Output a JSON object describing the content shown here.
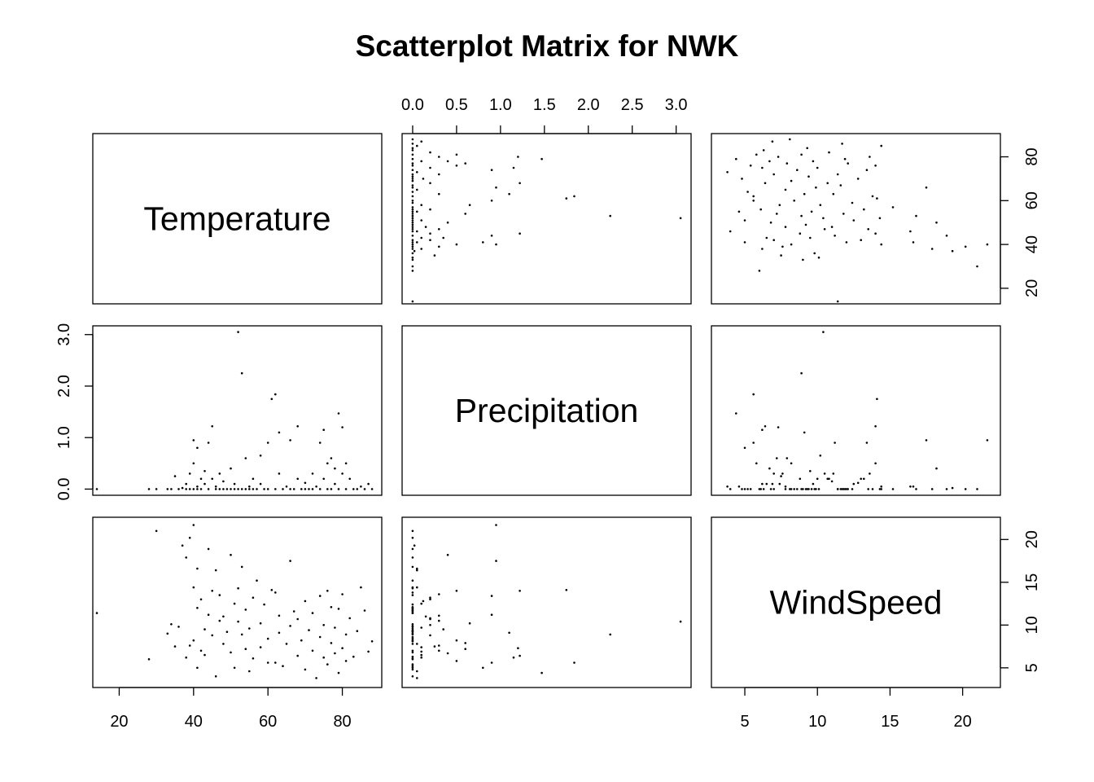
{
  "chart_data": {
    "type": "scatter",
    "title": "Scatterplot Matrix for NWK",
    "variables": [
      "Temperature",
      "Precipitation",
      "WindSpeed"
    ],
    "axes": {
      "Temperature": {
        "range": [
          12.9,
          90.6
        ],
        "ticks": [
          20,
          40,
          60,
          80
        ],
        "tick_labels": [
          "20",
          "40",
          "60",
          "80"
        ]
      },
      "Precipitation": {
        "range": [
          -0.12,
          3.17
        ],
        "ticks": [
          0,
          0.5,
          1,
          1.5,
          2,
          2.5,
          3
        ],
        "tick_labels": [
          "0.0",
          "0.5",
          "1.0",
          "1.5",
          "2.0",
          "2.5",
          "3.0"
        ],
        "vertical_ticks": [
          0,
          1,
          2,
          3
        ],
        "vertical_tick_labels": [
          "0.0",
          "1.0",
          "2.0",
          "3.0"
        ]
      },
      "WindSpeed": {
        "range": [
          2.7,
          22.6
        ],
        "ticks": [
          5,
          10,
          15,
          20
        ],
        "tick_labels": [
          "5",
          "10",
          "15",
          "20"
        ]
      }
    },
    "grid": false,
    "legend": "none",
    "point_color": "#000000",
    "observations": [
      {
        "t": 14,
        "p": 0,
        "w": 11.4
      },
      {
        "t": 28,
        "p": 0,
        "w": 6
      },
      {
        "t": 30,
        "p": 0,
        "w": 21
      },
      {
        "t": 33,
        "p": 0,
        "w": 9
      },
      {
        "t": 34,
        "p": 0,
        "w": 10.1
      },
      {
        "t": 35,
        "p": 0.25,
        "w": 7.5
      },
      {
        "t": 36,
        "p": 0,
        "w": 9.8
      },
      {
        "t": 37,
        "p": 0.02,
        "w": 19.3
      },
      {
        "t": 38,
        "p": 0,
        "w": 17.9
      },
      {
        "t": 38,
        "p": 0.1,
        "w": 6.2
      },
      {
        "t": 39,
        "p": 0,
        "w": 20.2
      },
      {
        "t": 39,
        "p": 0.3,
        "w": 7.6
      },
      {
        "t": 40,
        "p": 0.95,
        "w": 21.7
      },
      {
        "t": 40,
        "p": 0,
        "w": 14.4
      },
      {
        "t": 40,
        "p": 0.5,
        "w": 8.2
      },
      {
        "t": 41,
        "p": 0.05,
        "w": 16.6
      },
      {
        "t": 41,
        "p": 0,
        "w": 12
      },
      {
        "t": 41,
        "p": 0.8,
        "w": 5
      },
      {
        "t": 42,
        "p": 0.2,
        "w": 13
      },
      {
        "t": 42,
        "p": 0,
        "w": 7
      },
      {
        "t": 43,
        "p": 0.35,
        "w": 9.5
      },
      {
        "t": 43,
        "p": 0.1,
        "w": 6.5
      },
      {
        "t": 44,
        "p": 0.9,
        "w": 11.2
      },
      {
        "t": 44,
        "p": 0,
        "w": 18.9
      },
      {
        "t": 45,
        "p": 1.22,
        "w": 14
      },
      {
        "t": 45,
        "p": 0.2,
        "w": 8.8
      },
      {
        "t": 46,
        "p": 0.05,
        "w": 16.4
      },
      {
        "t": 46,
        "p": 0,
        "w": 4
      },
      {
        "t": 47,
        "p": 0.3,
        "w": 10.5
      },
      {
        "t": 47,
        "p": 0,
        "w": 13.5
      },
      {
        "t": 48,
        "p": 0,
        "w": 7.8
      },
      {
        "t": 48,
        "p": 0.15,
        "w": 11
      },
      {
        "t": 49,
        "p": 0,
        "w": 9.2
      },
      {
        "t": 50,
        "p": 0.4,
        "w": 18.2
      },
      {
        "t": 50,
        "p": 0,
        "w": 6.8
      },
      {
        "t": 51,
        "p": 0,
        "w": 5
      },
      {
        "t": 51,
        "p": 0.1,
        "w": 12.5
      },
      {
        "t": 52,
        "p": 3.05,
        "w": 10.4
      },
      {
        "t": 52,
        "p": 0,
        "w": 14.3
      },
      {
        "t": 53,
        "p": 2.25,
        "w": 8.9
      },
      {
        "t": 53,
        "p": 0,
        "w": 16.8
      },
      {
        "t": 54,
        "p": 0.6,
        "w": 7.2
      },
      {
        "t": 54,
        "p": 0,
        "w": 11.8
      },
      {
        "t": 55,
        "p": 0.05,
        "w": 4.6
      },
      {
        "t": 55,
        "p": 0,
        "w": 9.6
      },
      {
        "t": 56,
        "p": 0.2,
        "w": 13.2
      },
      {
        "t": 56,
        "p": 0,
        "w": 6.1
      },
      {
        "t": 57,
        "p": 0,
        "w": 15.2
      },
      {
        "t": 58,
        "p": 0.65,
        "w": 10.2
      },
      {
        "t": 58,
        "p": 0.1,
        "w": 7.4
      },
      {
        "t": 59,
        "p": 0,
        "w": 12.4
      },
      {
        "t": 60,
        "p": 0,
        "w": 8.4
      },
      {
        "t": 60,
        "p": 0.9,
        "w": 5.6
      },
      {
        "t": 61,
        "p": 1.75,
        "w": 14.1
      },
      {
        "t": 62,
        "p": 1.84,
        "w": 5.6
      },
      {
        "t": 62,
        "p": 0,
        "w": 13.8
      },
      {
        "t": 63,
        "p": 1.1,
        "w": 9.1
      },
      {
        "t": 63,
        "p": 0.3,
        "w": 11.1
      },
      {
        "t": 64,
        "p": 0,
        "w": 5.2
      },
      {
        "t": 65,
        "p": 0.05,
        "w": 7.8
      },
      {
        "t": 66,
        "p": 0.95,
        "w": 17.5
      },
      {
        "t": 66,
        "p": 0,
        "w": 9.9
      },
      {
        "t": 67,
        "p": 0,
        "w": 11.6
      },
      {
        "t": 68,
        "p": 1.22,
        "w": 6.4
      },
      {
        "t": 68,
        "p": 0.2,
        "w": 10.7
      },
      {
        "t": 69,
        "p": 0,
        "w": 8.2
      },
      {
        "t": 70,
        "p": 0.12,
        "w": 12.8
      },
      {
        "t": 70,
        "p": 0,
        "w": 4.8
      },
      {
        "t": 71,
        "p": 0,
        "w": 9.4
      },
      {
        "t": 72,
        "p": 0.3,
        "w": 7
      },
      {
        "t": 72,
        "p": 0,
        "w": 11.4
      },
      {
        "t": 73,
        "p": 0.05,
        "w": 3.8
      },
      {
        "t": 74,
        "p": 0.9,
        "w": 13.4
      },
      {
        "t": 74,
        "p": 0,
        "w": 8.6
      },
      {
        "t": 75,
        "p": 1.15,
        "w": 6.2
      },
      {
        "t": 75,
        "p": 0.2,
        "w": 10
      },
      {
        "t": 76,
        "p": 0.5,
        "w": 14
      },
      {
        "t": 76,
        "p": 0,
        "w": 5.4
      },
      {
        "t": 77,
        "p": 0.6,
        "w": 7.9
      },
      {
        "t": 77,
        "p": 0,
        "w": 12.1
      },
      {
        "t": 78,
        "p": 0.4,
        "w": 6.7
      },
      {
        "t": 78,
        "p": 0.1,
        "w": 9.7
      },
      {
        "t": 79,
        "p": 1.47,
        "w": 4.4
      },
      {
        "t": 79,
        "p": 0,
        "w": 11.9
      },
      {
        "t": 80,
        "p": 1.2,
        "w": 7.3
      },
      {
        "t": 80,
        "p": 0.3,
        "w": 13.6
      },
      {
        "t": 81,
        "p": 0.5,
        "w": 5.8
      },
      {
        "t": 81,
        "p": 0,
        "w": 8.9
      },
      {
        "t": 82,
        "p": 0.2,
        "w": 10.8
      },
      {
        "t": 83,
        "p": 0,
        "w": 6.3
      },
      {
        "t": 84,
        "p": 0,
        "w": 9.3
      },
      {
        "t": 85,
        "p": 0.05,
        "w": 14.4
      },
      {
        "t": 86,
        "p": 0,
        "w": 11.7
      },
      {
        "t": 87,
        "p": 0.1,
        "w": 6.9
      },
      {
        "t": 88,
        "p": 0,
        "w": 8.1
      }
    ]
  }
}
